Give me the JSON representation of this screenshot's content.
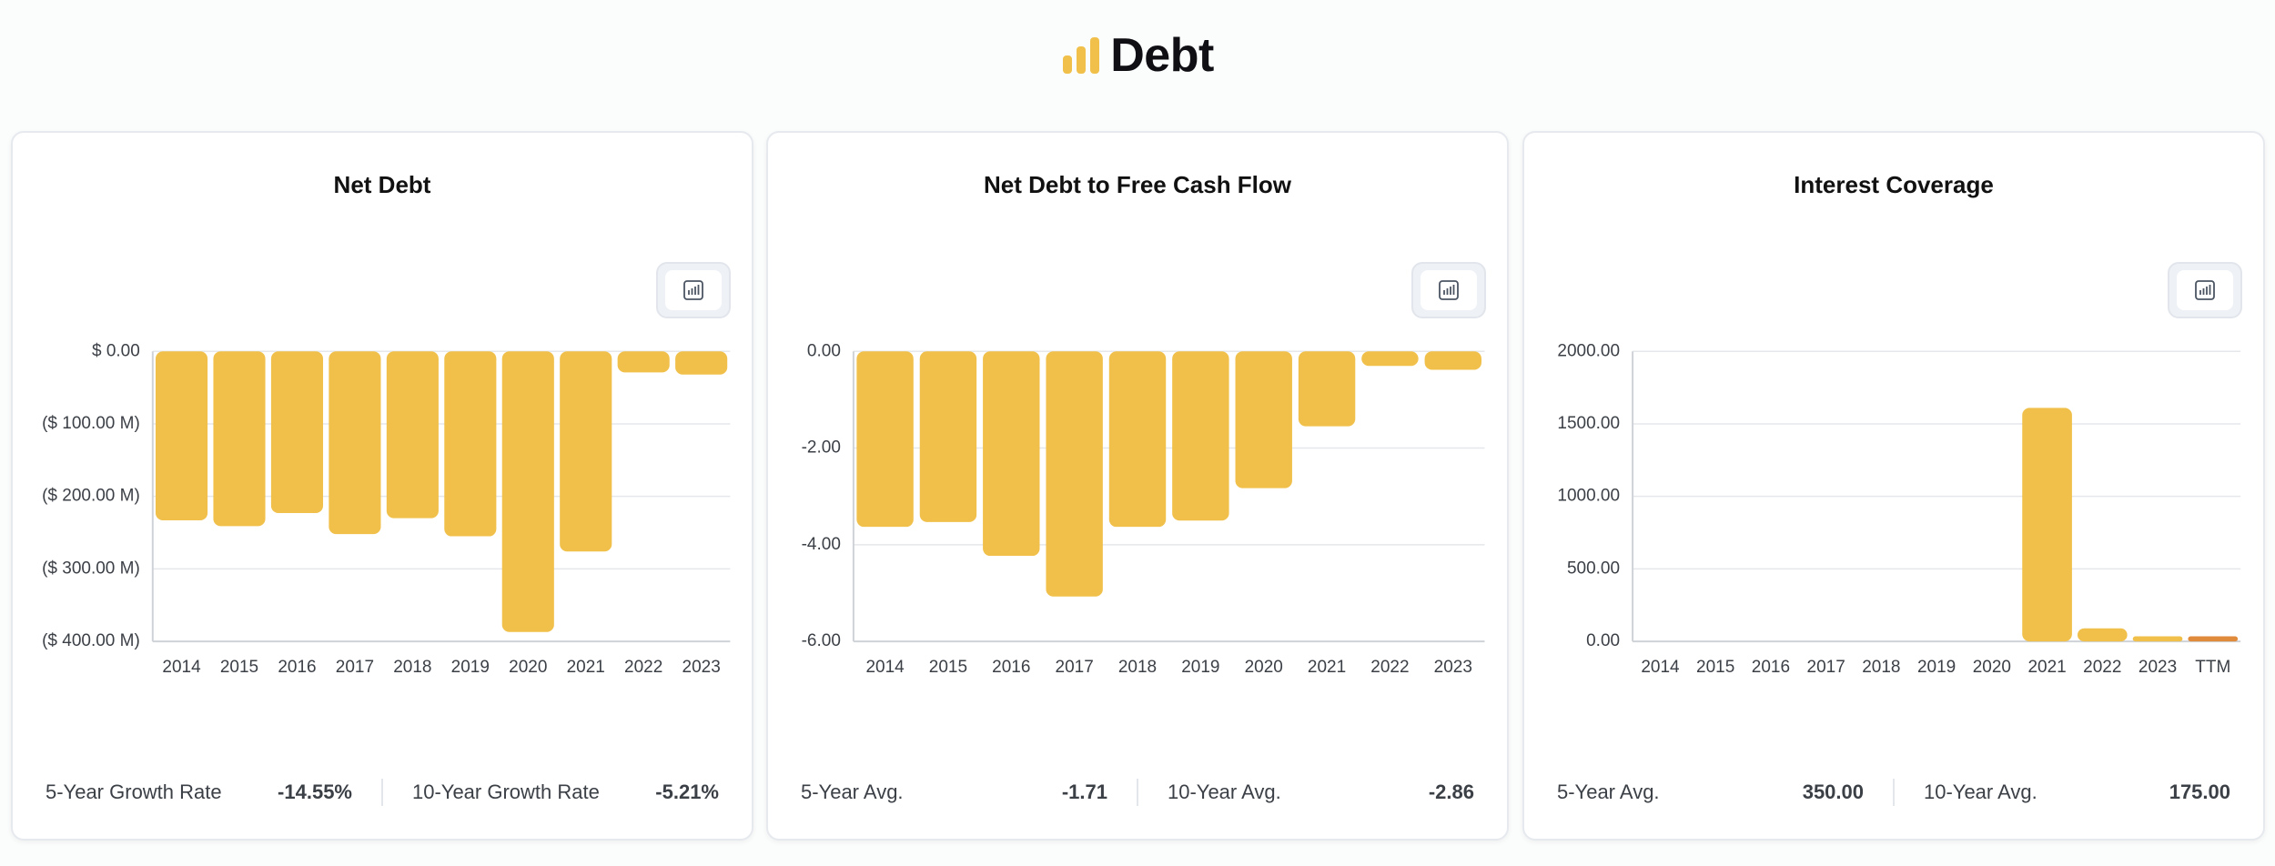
{
  "page": {
    "title": "Debt",
    "logo_icon": "bar-chart-logo-icon",
    "accent": "#f0c04a",
    "accent_ttm": "#e08a3c"
  },
  "cards": [
    {
      "title": "Net Debt",
      "button_icon": "chart-icon",
      "footer": {
        "left_label": "5-Year Growth Rate",
        "left_value": "-14.55%",
        "right_label": "10-Year Growth Rate",
        "right_value": "-5.21%"
      }
    },
    {
      "title": "Net Debt to Free Cash Flow",
      "button_icon": "chart-icon",
      "footer": {
        "left_label": "5-Year Avg.",
        "left_value": "-1.71",
        "right_label": "10-Year Avg.",
        "right_value": "-2.86"
      }
    },
    {
      "title": "Interest Coverage",
      "button_icon": "chart-icon",
      "footer": {
        "left_label": "5-Year Avg.",
        "left_value": "350.00",
        "right_label": "10-Year Avg.",
        "right_value": "175.00"
      }
    }
  ],
  "chart_data": [
    {
      "type": "bar",
      "title": "Net Debt",
      "categories": [
        "2014",
        "2015",
        "2016",
        "2017",
        "2018",
        "2019",
        "2020",
        "2021",
        "2022",
        "2023"
      ],
      "values": [
        -233,
        -241,
        -223,
        -252,
        -230,
        -255,
        -387,
        -276,
        -29,
        -32
      ],
      "units": "$ M",
      "ylim": [
        -400,
        0
      ],
      "yticks": [
        0,
        -100,
        -200,
        -300,
        -400
      ],
      "ytick_labels": [
        "$ 0.00",
        "($ 100.00 M)",
        "($ 200.00 M)",
        "($ 300.00 M)",
        "($ 400.00 M)"
      ],
      "grid": true
    },
    {
      "type": "bar",
      "title": "Net Debt to Free Cash Flow",
      "categories": [
        "2014",
        "2015",
        "2016",
        "2017",
        "2018",
        "2019",
        "2020",
        "2021",
        "2022",
        "2023"
      ],
      "values": [
        -3.63,
        -3.53,
        -4.23,
        -5.07,
        -3.63,
        -3.5,
        -2.83,
        -1.55,
        -0.3,
        -0.38
      ],
      "ylim": [
        -6,
        0
      ],
      "yticks": [
        0,
        -2,
        -4,
        -6
      ],
      "ytick_labels": [
        "0.00",
        "-2.00",
        "-4.00",
        "-6.00"
      ],
      "grid": true
    },
    {
      "type": "bar",
      "title": "Interest Coverage",
      "categories": [
        "2014",
        "2015",
        "2016",
        "2017",
        "2018",
        "2019",
        "2020",
        "2021",
        "2022",
        "2023",
        "TTM"
      ],
      "values": [
        0,
        0,
        0,
        0,
        0,
        0,
        0,
        1610,
        90,
        35,
        35
      ],
      "ylim": [
        0,
        2000
      ],
      "yticks": [
        2000,
        1500,
        1000,
        500,
        0
      ],
      "ytick_labels": [
        "2000.00",
        "1500.00",
        "1000.00",
        "500.00",
        "0.00"
      ],
      "grid": true,
      "highlight_last": true
    }
  ]
}
